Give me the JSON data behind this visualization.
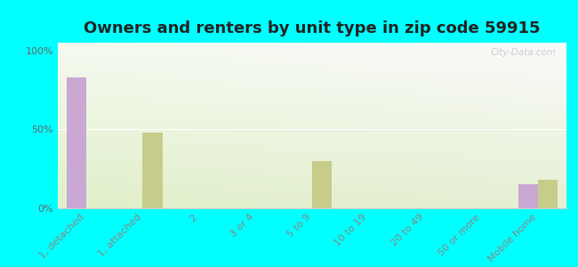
{
  "title": "Owners and renters by unit type in zip code 59915",
  "categories": [
    "1, detached",
    "1, attached",
    "2",
    "3 or 4",
    "5 to 9",
    "10 to 19",
    "20 to 49",
    "50 or more",
    "Mobile home"
  ],
  "owner_values": [
    83,
    0,
    0,
    0,
    0,
    0,
    0,
    0,
    15
  ],
  "renter_values": [
    0,
    48,
    0,
    0,
    30,
    0,
    0,
    0,
    18
  ],
  "owner_color": "#c9a8d4",
  "renter_color": "#c8cc8a",
  "background_color": "#00ffff",
  "ylabel_ticks": [
    "0%",
    "50%",
    "100%"
  ],
  "yticks": [
    0,
    50,
    100
  ],
  "ylim": [
    0,
    105
  ],
  "bar_width": 0.35,
  "watermark": "City-Data.com",
  "title_fontsize": 13,
  "tick_fontsize": 8
}
